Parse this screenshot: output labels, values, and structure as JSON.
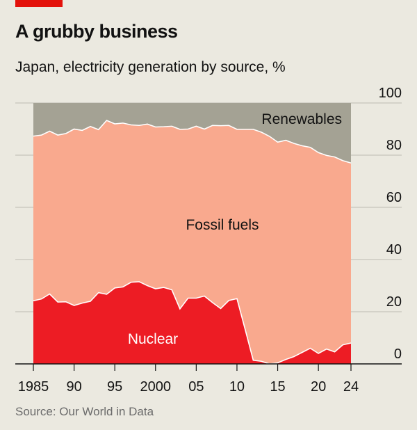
{
  "header": {
    "title": "A grubby business",
    "subtitle": "Japan, electricity generation by source, %"
  },
  "footer": {
    "source": "Source: Our World in Data"
  },
  "colors": {
    "nuclear": "#ed1c24",
    "fossil": "#f9a98e",
    "renewables": "#a4a294",
    "background": "#ebe9e0",
    "brand_bar": "#e3120b"
  },
  "chart_data": {
    "type": "area",
    "stacked": true,
    "title": "A grubby business",
    "subtitle": "Japan, electricity generation by source, %",
    "xlabel": "",
    "ylabel": "",
    "ylim": [
      0,
      100
    ],
    "xlim": [
      1985,
      2024
    ],
    "grid": true,
    "y_ticks": [
      "100",
      "80",
      "60",
      "40",
      "20",
      "0"
    ],
    "y_tick_values": [
      100,
      80,
      60,
      40,
      20,
      0
    ],
    "x_ticks": [
      "1985",
      "90",
      "95",
      "2000",
      "05",
      "10",
      "15",
      "20",
      "24"
    ],
    "x_tick_values": [
      1985,
      1990,
      1995,
      2000,
      2005,
      2010,
      2015,
      2020,
      2024
    ],
    "x": [
      1985,
      1986,
      1987,
      1988,
      1989,
      1990,
      1991,
      1992,
      1993,
      1994,
      1995,
      1996,
      1997,
      1998,
      1999,
      2000,
      2001,
      2002,
      2003,
      2004,
      2005,
      2006,
      2007,
      2008,
      2009,
      2010,
      2011,
      2012,
      2013,
      2014,
      2015,
      2016,
      2017,
      2018,
      2019,
      2020,
      2021,
      2022,
      2023,
      2024
    ],
    "series": [
      {
        "name": "Nuclear",
        "values": [
          24.2,
          24.9,
          26.8,
          23.7,
          23.8,
          22.4,
          23.3,
          24.0,
          27.3,
          26.7,
          29.1,
          29.5,
          31.3,
          31.5,
          30.0,
          28.8,
          29.3,
          28.4,
          21.1,
          25.2,
          25.2,
          26.0,
          23.5,
          21.2,
          24.3,
          25.0,
          13.3,
          1.4,
          1.0,
          0.0,
          0.4,
          1.7,
          2.8,
          4.4,
          6.0,
          4.0,
          5.7,
          4.6,
          7.3,
          8.0
        ]
      },
      {
        "name": "Fossil fuels",
        "values": [
          63.1,
          62.8,
          62.4,
          64.0,
          64.5,
          67.6,
          66.2,
          67.0,
          62.5,
          66.6,
          62.9,
          62.8,
          60.3,
          59.9,
          61.9,
          62.0,
          61.6,
          62.7,
          68.8,
          64.8,
          65.9,
          64.0,
          67.9,
          70.1,
          67.1,
          64.9,
          76.6,
          88.5,
          87.8,
          87.2,
          84.6,
          84.0,
          81.7,
          79.2,
          77.0,
          77.0,
          74.2,
          74.7,
          70.6,
          69.0
        ]
      },
      {
        "name": "Renewables",
        "values": [
          12.7,
          12.3,
          10.8,
          12.3,
          11.7,
          10.0,
          10.5,
          9.0,
          10.2,
          6.7,
          8.0,
          7.7,
          8.4,
          8.6,
          8.1,
          9.2,
          9.1,
          8.9,
          10.1,
          10.0,
          8.9,
          10.0,
          8.6,
          8.7,
          8.6,
          10.1,
          10.1,
          10.1,
          11.2,
          12.8,
          15.0,
          14.3,
          15.5,
          16.4,
          17.0,
          19.0,
          20.1,
          20.7,
          22.1,
          23.0
        ]
      }
    ],
    "annotations": [
      "Renewables",
      "Fossil fuels",
      "Nuclear"
    ]
  }
}
